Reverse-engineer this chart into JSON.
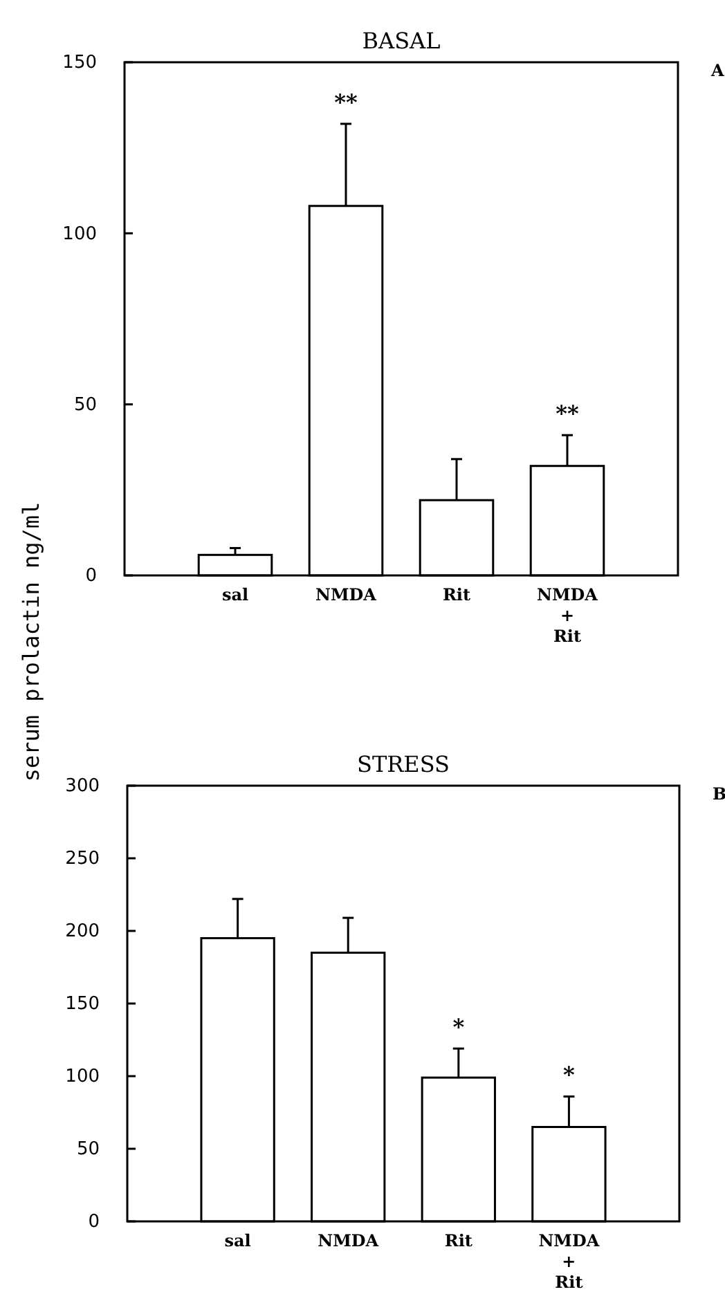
{
  "chart_data": [
    {
      "type": "bar",
      "title": "BASAL",
      "ylabel": "serum prolactin ng/ml",
      "categories": [
        "sal",
        "NMDA",
        "Rit",
        "NMDA\n+\nRit"
      ],
      "values": [
        6,
        108,
        22,
        32
      ],
      "errors": [
        [
          6,
          8
        ],
        [
          108,
          132
        ],
        [
          22,
          34
        ],
        [
          32,
          41
        ]
      ],
      "color": "#ffffff",
      "ylim": [
        0,
        150
      ],
      "yticks": [
        0,
        50,
        100,
        150
      ],
      "grid": false,
      "annotations": [
        {
          "text": "**",
          "x": "NMDA",
          "y": 132
        },
        {
          "text": "**",
          "x": "NMDA\n+\nRit",
          "y": 41
        },
        "A"
      ]
    },
    {
      "type": "bar",
      "title": "STRESS",
      "categories": [
        "sal",
        "NMDA",
        "Rit",
        "NMDA\n+\nRit"
      ],
      "values": [
        195,
        185,
        99,
        65
      ],
      "errors": [
        [
          195,
          222
        ],
        [
          185,
          209
        ],
        [
          99,
          119
        ],
        [
          65,
          86
        ]
      ],
      "color": "#ffffff",
      "ylim": [
        0,
        300
      ],
      "yticks": [
        0,
        50,
        100,
        150,
        200,
        250,
        300
      ],
      "grid": false,
      "annotations": [
        {
          "text": "*",
          "x": "Rit",
          "y": 119
        },
        {
          "text": "*",
          "x": "NMDA\n+\nRit",
          "y": 86
        },
        "B"
      ]
    }
  ]
}
